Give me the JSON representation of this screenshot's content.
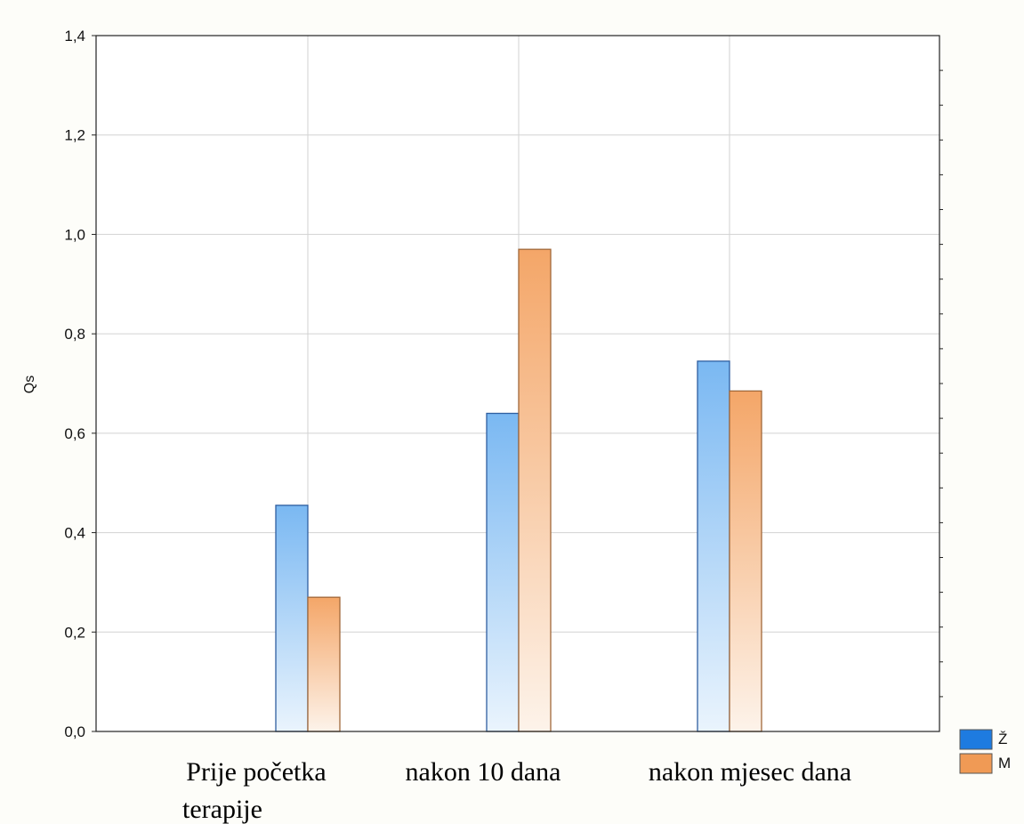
{
  "chart_data": {
    "type": "bar",
    "categories": [
      "Prije početka terapije",
      "nakon 10 dana",
      "nakon mjesec dana"
    ],
    "category_lines": [
      [
        "Prije početka",
        "terapije"
      ],
      [
        "nakon 10 dana"
      ],
      [
        "nakon mjesec dana"
      ]
    ],
    "series": [
      {
        "name": "Ž",
        "values": [
          0.455,
          0.64,
          0.745
        ],
        "color": "#1e7be0",
        "gradient_top": "#7ab8f2",
        "gradient_bottom": "#eaf4fd",
        "stroke": "#2f5fa0"
      },
      {
        "name": "M",
        "values": [
          0.27,
          0.97,
          0.685
        ],
        "color": "#f09a55",
        "gradient_top": "#f4a668",
        "gradient_bottom": "#fdf3ea",
        "stroke": "#a0683a"
      }
    ],
    "title": "",
    "xlabel": "",
    "ylabel": "Qs",
    "ylim": [
      0,
      1.4
    ],
    "yticks": [
      "0,0",
      "0,2",
      "0,4",
      "0,6",
      "0,8",
      "1,0",
      "1,2",
      "1,4"
    ],
    "grid": true,
    "legend_position": "bottom-right"
  }
}
